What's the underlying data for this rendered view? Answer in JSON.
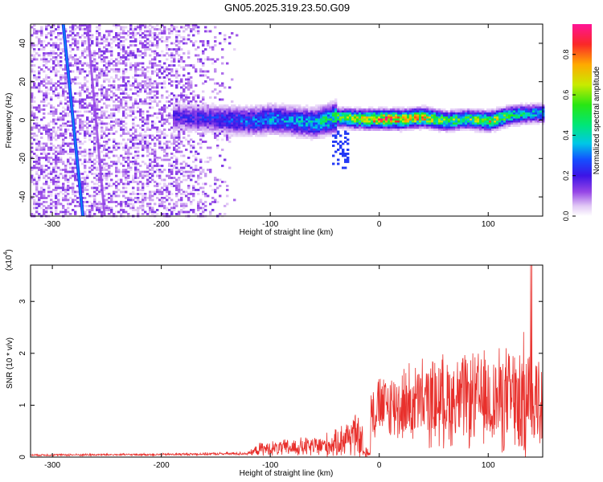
{
  "title": "GN05.2025.319.23.50.G09",
  "chart_data": [
    {
      "type": "heatmap",
      "xlabel": "Height of straight line (km)",
      "ylabel": "Frequency (Hz)",
      "xlim": [
        -320,
        150
      ],
      "ylim": [
        -50,
        50
      ],
      "xticks": [
        -300,
        -200,
        -100,
        0,
        100
      ],
      "yticks": [
        -40,
        -20,
        0,
        20,
        40
      ],
      "colorbar": {
        "label": "Normalized spectral amplitude",
        "range": [
          0,
          0.95
        ],
        "ticks": [
          0.0,
          0.2,
          0.4,
          0.6,
          0.8
        ],
        "tick_labels": [
          "0.0",
          "0.2",
          "0.4",
          "0.6",
          "0.8"
        ]
      },
      "features": [
        {
          "name": "diffuse noise",
          "x_range": [
            -320,
            -130
          ],
          "y_range": [
            -50,
            50
          ],
          "amplitude": 0.1
        },
        {
          "name": "strong line",
          "x": [
            -290,
            -272
          ],
          "y": [
            50,
            -50
          ],
          "amplitude": 0.25
        },
        {
          "name": "weak line",
          "x": [
            -268,
            -252
          ],
          "y": [
            50,
            -50
          ],
          "amplitude": 0.12
        },
        {
          "name": "signal track",
          "x": [
            -180,
            -150,
            -120,
            -100,
            -80,
            -60,
            -40,
            -20,
            0,
            20,
            40,
            60,
            80,
            100,
            120,
            140,
            150
          ],
          "y": [
            2,
            1,
            0,
            1,
            0,
            -1,
            2,
            1,
            1,
            1,
            2,
            0,
            1,
            0,
            3,
            4,
            4
          ],
          "amplitude": [
            0.2,
            0.25,
            0.3,
            0.35,
            0.35,
            0.4,
            0.55,
            0.7,
            0.85,
            0.8,
            0.75,
            0.6,
            0.55,
            0.7,
            0.5,
            0.4,
            0.4
          ]
        }
      ],
      "grid": false
    },
    {
      "type": "line",
      "xlabel": "Height of straight line (km)",
      "ylabel": "SNR (10 * v/v)",
      "scale_label": "(x10",
      "scale_exponent": "4",
      "xlim": [
        -320,
        150
      ],
      "ylim": [
        0,
        37000
      ],
      "xticks": [
        -300,
        -200,
        -100,
        0,
        100
      ],
      "yticks": [
        0,
        1,
        2,
        3
      ],
      "color": "#e8302c",
      "envelope": {
        "x": [
          -320,
          -200,
          -120,
          -110,
          -60,
          -40,
          -25,
          -15,
          -10,
          0,
          20,
          40,
          60,
          80,
          100,
          120,
          140,
          150
        ],
        "mean": [
          400,
          500,
          700,
          1500,
          2000,
          2500,
          4500,
          3000,
          9000,
          9500,
          10000,
          10500,
          11000,
          11000,
          11000,
          11000,
          11000,
          10500
        ],
        "spread": [
          200,
          200,
          300,
          1200,
          2000,
          2500,
          4500,
          3500,
          5000,
          6000,
          7000,
          8000,
          8500,
          8500,
          9000,
          10000,
          12000,
          9000
        ]
      },
      "grid": false
    }
  ]
}
